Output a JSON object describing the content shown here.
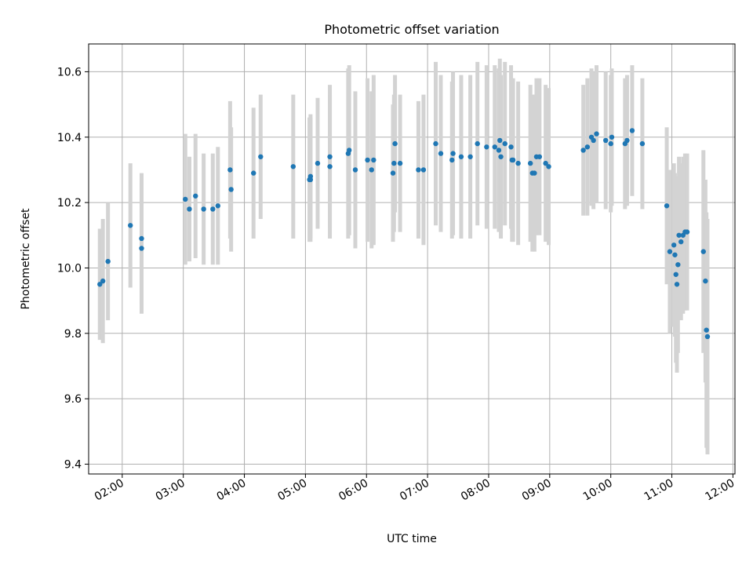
{
  "chart_data": {
    "type": "scatter",
    "title": "Photometric offset variation",
    "xlabel": "UTC time",
    "ylabel": "Photometric offset",
    "x_ticks": [
      "02:00",
      "03:00",
      "04:00",
      "05:00",
      "06:00",
      "07:00",
      "08:00",
      "09:00",
      "10:00",
      "11:00",
      "12:00"
    ],
    "y_ticks": [
      "9.4",
      "9.6",
      "9.8",
      "10.0",
      "10.2",
      "10.4",
      "10.6"
    ],
    "xlim": [
      "01:27",
      "12:02"
    ],
    "ylim": [
      9.37,
      10.685
    ],
    "grid": true,
    "colors": {
      "points": "#1f77b4",
      "errorbars": "#d3d3d3"
    },
    "series": [
      {
        "x": [
          "01:38",
          "01:41",
          "01:46",
          "02:08",
          "02:19",
          "02:19",
          "03:02",
          "03:06",
          "03:12",
          "03:20",
          "03:29",
          "03:34",
          "03:46",
          "03:47",
          "04:09",
          "04:16",
          "04:48",
          "05:04",
          "05:05",
          "05:05",
          "05:12",
          "05:24",
          "05:24",
          "05:42",
          "05:43",
          "05:49",
          "06:01",
          "06:05",
          "06:07",
          "06:26",
          "06:27",
          "06:28",
          "06:33",
          "06:51",
          "06:56",
          "07:08",
          "07:13",
          "07:24",
          "07:25",
          "07:33",
          "07:42",
          "07:49",
          "07:58",
          "08:06",
          "08:10",
          "08:11",
          "08:12",
          "08:16",
          "08:22",
          "08:23",
          "08:24",
          "08:29",
          "08:41",
          "08:43",
          "08:45",
          "08:47",
          "08:50",
          "08:56",
          "08:59",
          "09:33",
          "09:37",
          "09:41",
          "09:43",
          "09:46",
          "09:55",
          "10:00",
          "10:01",
          "10:14",
          "10:16",
          "10:21",
          "10:31",
          "10:55",
          "10:58",
          "11:02",
          "11:03",
          "11:04",
          "11:05",
          "11:06",
          "11:07",
          "11:09",
          "11:11",
          "11:13",
          "11:15",
          "11:31",
          "11:33",
          "11:34",
          "11:35"
        ],
        "y": [
          9.95,
          9.96,
          10.02,
          10.13,
          10.09,
          10.06,
          10.21,
          10.18,
          10.22,
          10.18,
          10.18,
          10.19,
          10.3,
          10.24,
          10.29,
          10.34,
          10.31,
          10.27,
          10.28,
          10.27,
          10.32,
          10.31,
          10.34,
          10.35,
          10.36,
          10.3,
          10.33,
          10.3,
          10.33,
          10.29,
          10.32,
          10.38,
          10.32,
          10.3,
          10.3,
          10.38,
          10.35,
          10.33,
          10.35,
          10.34,
          10.34,
          10.38,
          10.37,
          10.37,
          10.36,
          10.39,
          10.34,
          10.38,
          10.37,
          10.33,
          10.33,
          10.32,
          10.32,
          10.29,
          10.29,
          10.34,
          10.34,
          10.32,
          10.31,
          10.36,
          10.37,
          10.4,
          10.39,
          10.41,
          10.39,
          10.38,
          10.4,
          10.38,
          10.39,
          10.42,
          10.38,
          10.19,
          10.05,
          10.07,
          10.04,
          9.98,
          9.95,
          10.01,
          10.1,
          10.08,
          10.1,
          10.11,
          10.11,
          10.05,
          9.96,
          9.81,
          9.79
        ],
        "err": [
          0.17,
          0.19,
          0.18,
          0.19,
          0.2,
          0.2,
          0.2,
          0.16,
          0.19,
          0.17,
          0.17,
          0.18,
          0.21,
          0.19,
          0.2,
          0.19,
          0.22,
          0.19,
          0.19,
          0.19,
          0.2,
          0.22,
          0.22,
          0.26,
          0.26,
          0.24,
          0.25,
          0.24,
          0.26,
          0.21,
          0.21,
          0.21,
          0.21,
          0.21,
          0.23,
          0.25,
          0.24,
          0.24,
          0.25,
          0.25,
          0.25,
          0.25,
          0.25,
          0.25,
          0.25,
          0.25,
          0.25,
          0.25,
          0.25,
          0.25,
          0.25,
          0.25,
          0.24,
          0.24,
          0.24,
          0.24,
          0.24,
          0.24,
          0.24,
          0.2,
          0.21,
          0.21,
          0.21,
          0.21,
          0.21,
          0.21,
          0.21,
          0.2,
          0.2,
          0.2,
          0.2,
          0.24,
          0.25,
          0.25,
          0.25,
          0.27,
          0.27,
          0.27,
          0.24,
          0.24,
          0.24,
          0.24,
          0.24,
          0.31,
          0.31,
          0.36,
          0.36
        ]
      }
    ]
  }
}
